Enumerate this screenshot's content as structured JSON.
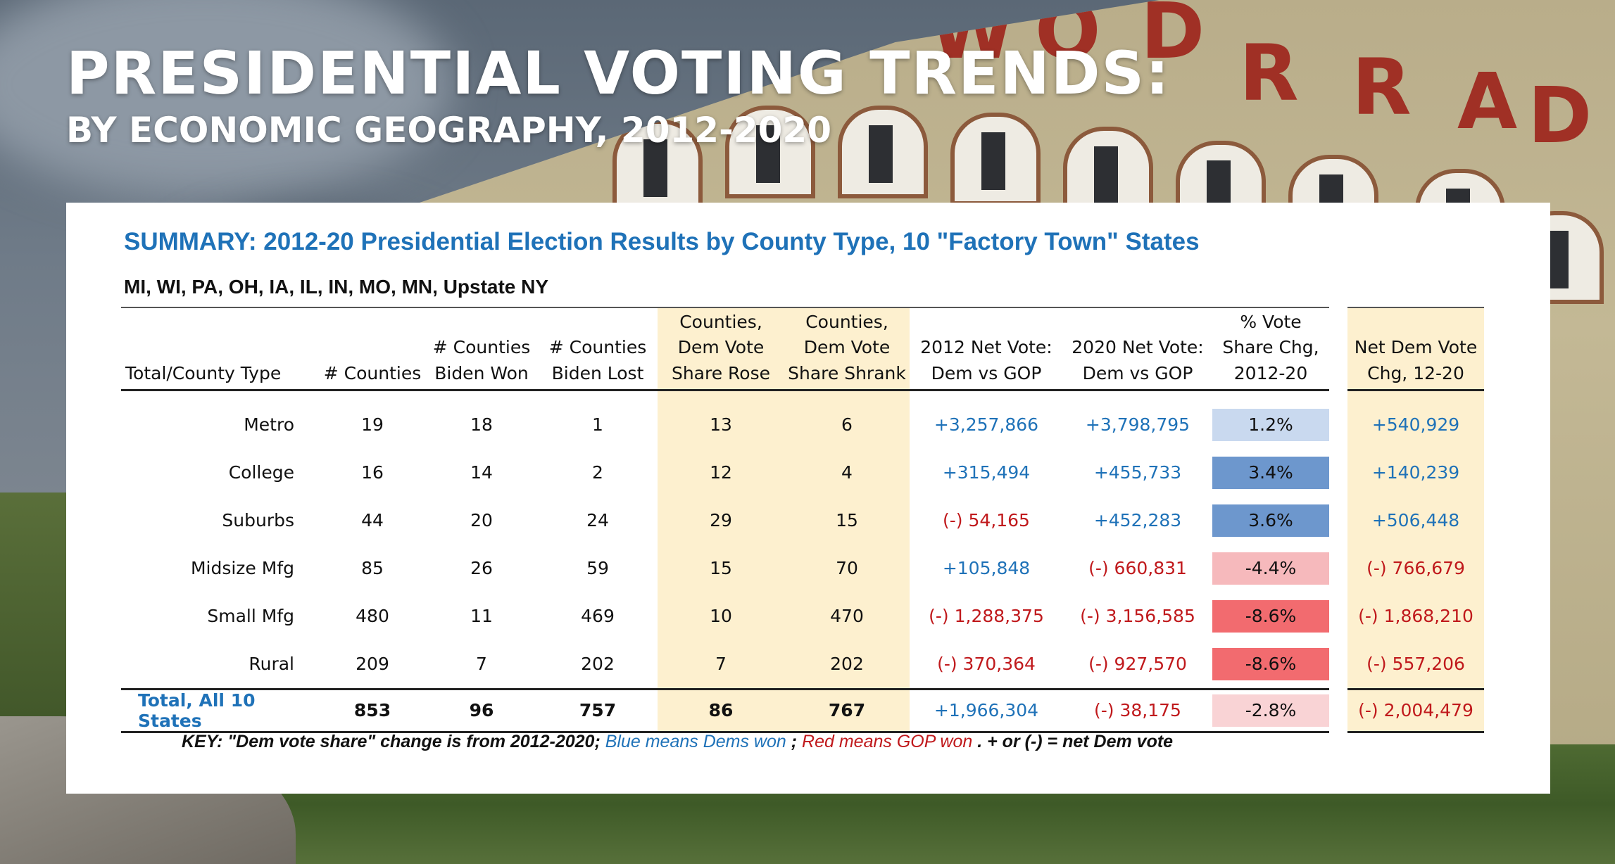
{
  "header": {
    "title": "PRESIDENTIAL VOTING TRENDS:",
    "subtitle": "BY ECONOMIC GEOGRAPHY, 2012-2020"
  },
  "background": {
    "sign_letters": [
      "W",
      "O",
      "D",
      "R",
      "R",
      "A",
      "D"
    ]
  },
  "chart_data": {
    "type": "table",
    "title": "SUMMARY: 2012-20 Presidential Election Results by County Type, 10 \"Factory Town\" States",
    "subtitle": "MI, WI, PA, OH, IA, IL, IN, MO, MN, Upstate NY",
    "columns": [
      "Total/County Type",
      "# Counties",
      "# Counties Biden Won",
      "# Counties Biden Lost",
      "Counties, Dem Vote Share Rose",
      "Counties, Dem Vote Share Shrank",
      "2012 Net Vote: Dem vs GOP",
      "2020 Net Vote: Dem vs GOP",
      "% Vote Share Chg, 2012-20",
      "Net Dem Vote Chg, 12-20"
    ],
    "rows": [
      {
        "type": "Metro",
        "counties": "19",
        "biden_won": "18",
        "biden_lost": "1",
        "share_rose": "13",
        "share_shrank": "6",
        "net_2012": "+3,257,866",
        "net_2020": "+3,798,795",
        "pct_chg": "1.2%",
        "net_chg": "+540,929"
      },
      {
        "type": "College",
        "counties": "16",
        "biden_won": "14",
        "biden_lost": "2",
        "share_rose": "12",
        "share_shrank": "4",
        "net_2012": "+315,494",
        "net_2020": "+455,733",
        "pct_chg": "3.4%",
        "net_chg": "+140,239"
      },
      {
        "type": "Suburbs",
        "counties": "44",
        "biden_won": "20",
        "biden_lost": "24",
        "share_rose": "29",
        "share_shrank": "15",
        "net_2012": "(-) 54,165",
        "net_2020": "+452,283",
        "pct_chg": "3.6%",
        "net_chg": "+506,448"
      },
      {
        "type": "Midsize Mfg",
        "counties": "85",
        "biden_won": "26",
        "biden_lost": "59",
        "share_rose": "15",
        "share_shrank": "70",
        "net_2012": "+105,848",
        "net_2020": "(-) 660,831",
        "pct_chg": "-4.4%",
        "net_chg": "(-) 766,679"
      },
      {
        "type": "Small Mfg",
        "counties": "480",
        "biden_won": "11",
        "biden_lost": "469",
        "share_rose": "10",
        "share_shrank": "470",
        "net_2012": "(-) 1,288,375",
        "net_2020": "(-) 3,156,585",
        "pct_chg": "-8.6%",
        "net_chg": "(-) 1,868,210"
      },
      {
        "type": "Rural",
        "counties": "209",
        "biden_won": "7",
        "biden_lost": "202",
        "share_rose": "7",
        "share_shrank": "202",
        "net_2012": "(-) 370,364",
        "net_2020": "(-) 927,570",
        "pct_chg": "-8.6%",
        "net_chg": "(-) 557,206"
      }
    ],
    "total": {
      "type": "Total, All 10 States",
      "counties": "853",
      "biden_won": "96",
      "biden_lost": "757",
      "share_rose": "86",
      "share_shrank": "767",
      "net_2012": "+1,966,304",
      "net_2020": "(-) 38,175",
      "pct_chg": "-2.8%",
      "net_chg": "(-) 2,004,479"
    },
    "pct_colors": {
      "1.2%": "#c9d9ef",
      "3.4%": "#6d97cd",
      "3.6%": "#6d97cd",
      "-4.4%": "#f6b9bc",
      "-8.6%": "#f26b6f",
      "-2.8%": "#f9d3d5"
    },
    "highlight_color": "#fdf0cf",
    "dem_color": "#1f72b8",
    "gop_color": "#c0191c",
    "key": {
      "prefix": "KEY: \"Dem vote share\" change is from 2012-2020; ",
      "blue": "Blue means Dems won",
      "sep": "; ",
      "red": "Red means GOP won",
      "suffix": ". + or (-) = net Dem vote"
    }
  }
}
